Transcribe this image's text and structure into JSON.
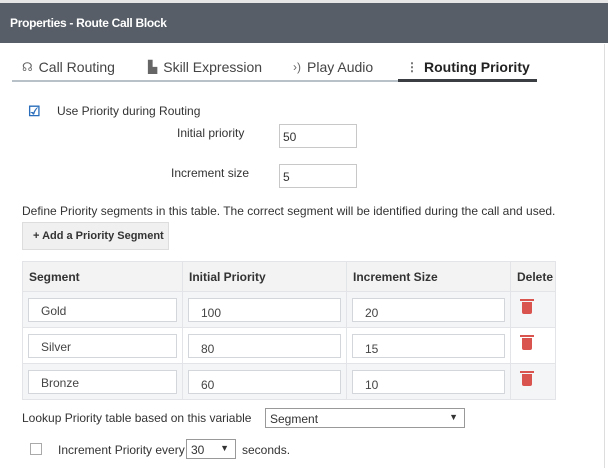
{
  "header": {
    "title": "Properties - Route Call Block"
  },
  "tabs": [
    {
      "label": "Call Routing",
      "icon": "headset-icon"
    },
    {
      "label": "Skill Expression",
      "icon": "skill-icon"
    },
    {
      "label": "Play Audio",
      "icon": "audio-icon"
    },
    {
      "label": "Routing Priority",
      "icon": "kebab-icon",
      "active": true
    }
  ],
  "use_priority": {
    "label": "Use Priority during Routing",
    "checked": true
  },
  "initial_priority": {
    "label": "Initial priority",
    "value": "50"
  },
  "increment_size": {
    "label": "Increment size",
    "value": "5"
  },
  "description": "Define Priority segments in this table. The correct segment will be identified during the call and used.",
  "add_button": "+ Add a Priority Segment",
  "table": {
    "headers": [
      "Segment",
      "Initial Priority",
      "Increment Size",
      "Delete"
    ],
    "rows": [
      {
        "segment": "Gold",
        "initial": "100",
        "increment": "20"
      },
      {
        "segment": "Silver",
        "initial": "80",
        "increment": "15"
      },
      {
        "segment": "Bronze",
        "initial": "60",
        "increment": "10"
      }
    ]
  },
  "lookup": {
    "label": "Lookup Priority table based on this variable",
    "value": "Segment"
  },
  "increment_every": {
    "label": "Increment Priority every",
    "value": "30",
    "suffix": "seconds.",
    "checked": false
  },
  "colors": {
    "header_bg": "#575e67",
    "delete": "#d9534f",
    "check": "#2a6ebb"
  }
}
